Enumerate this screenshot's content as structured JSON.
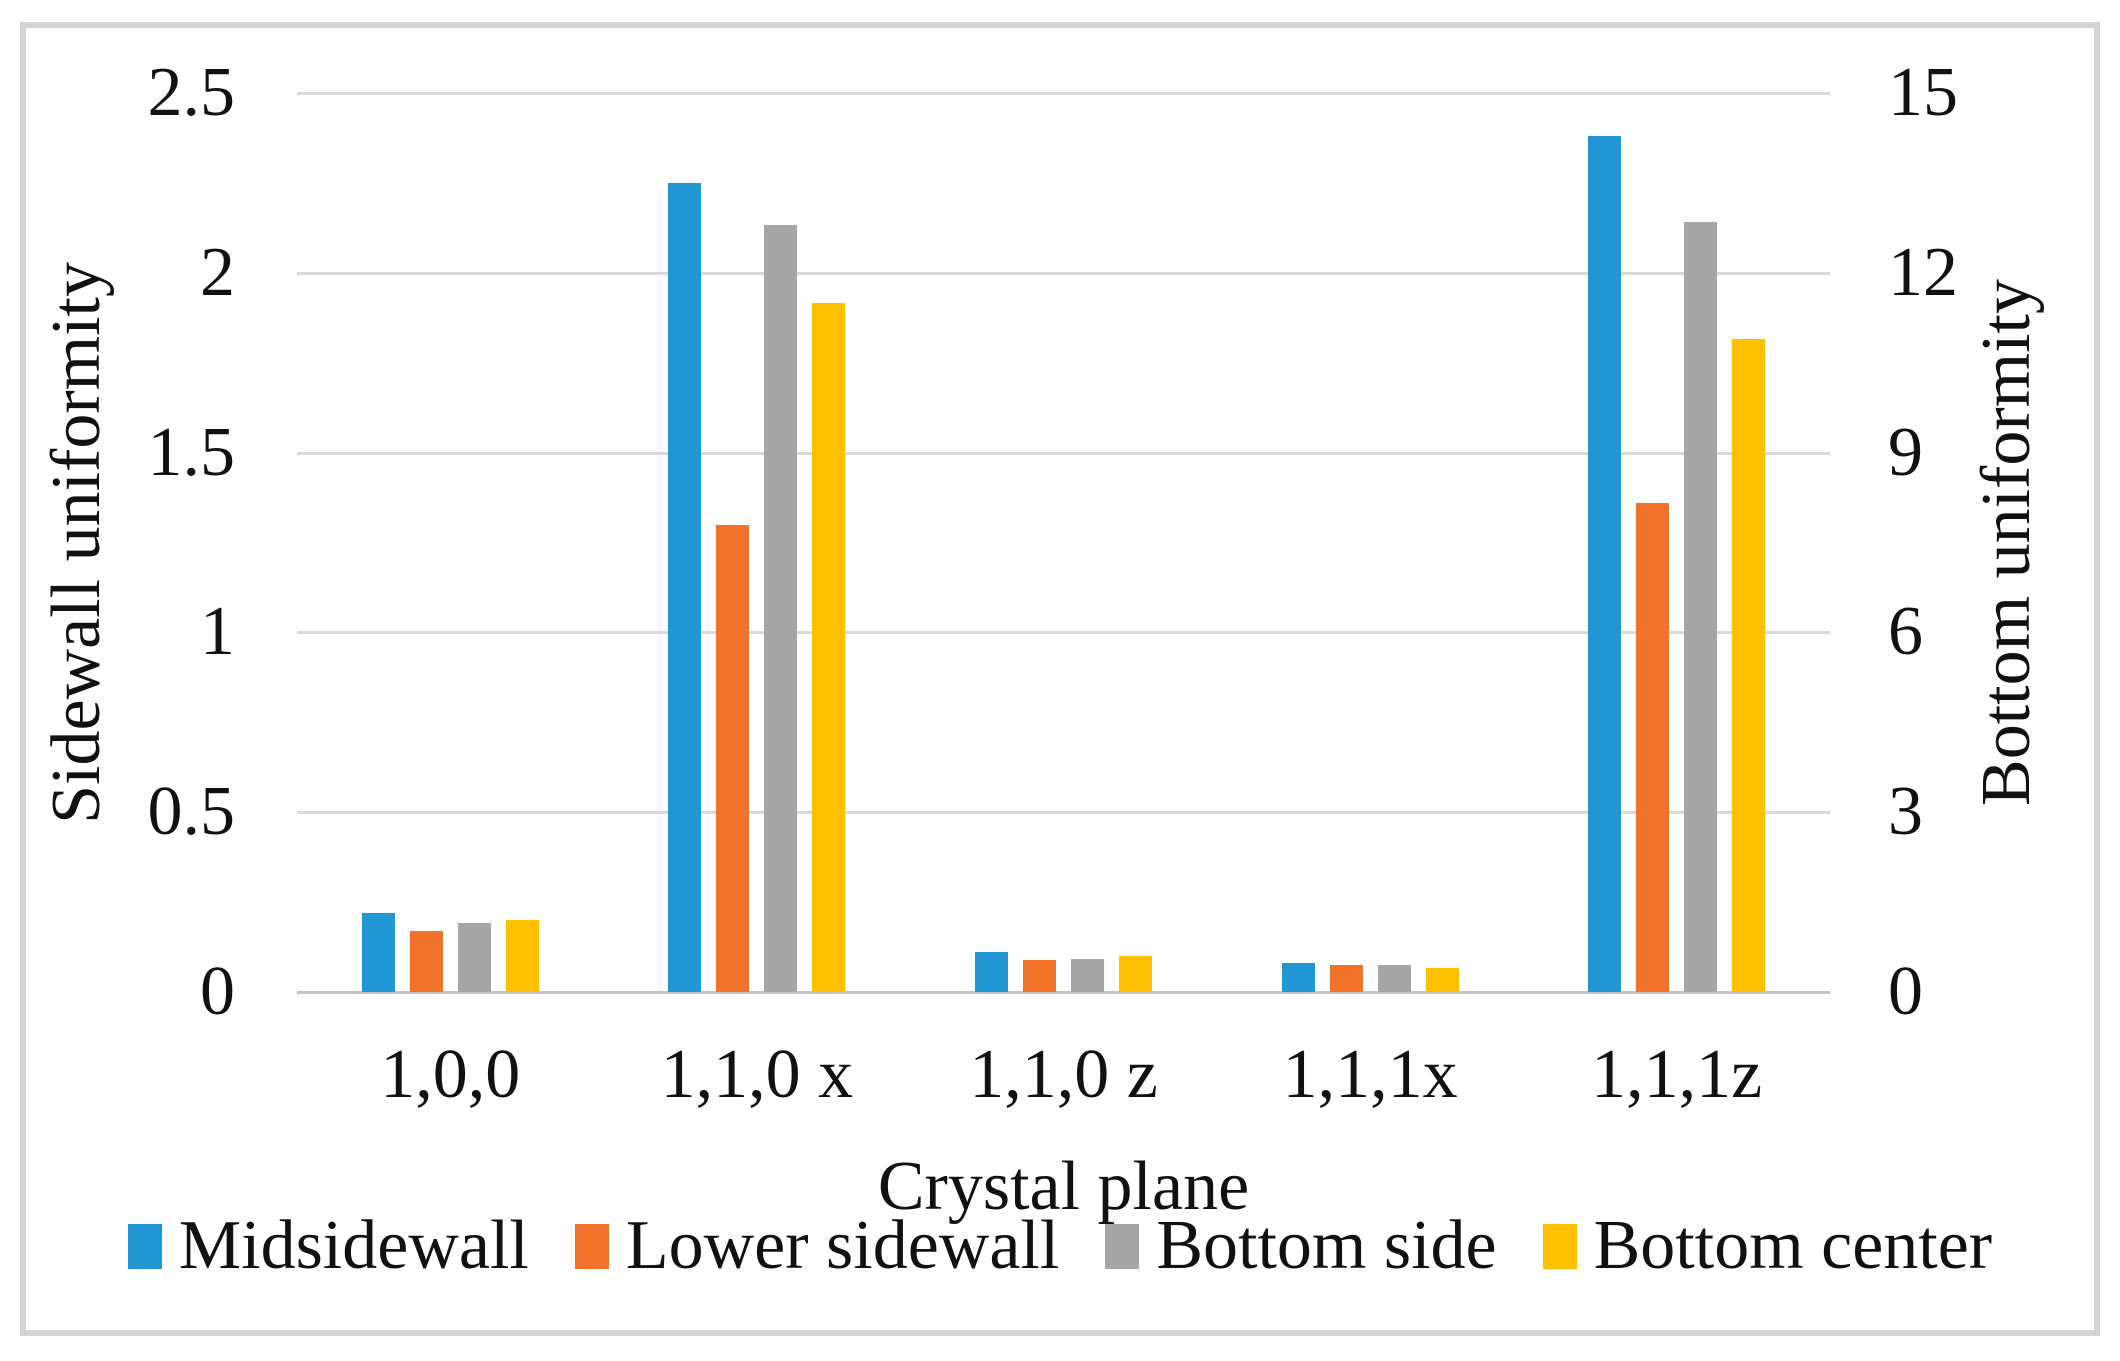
{
  "chart_data": {
    "type": "bar",
    "title": "",
    "xlabel": "Crystal plane",
    "categories": [
      "1,0,0",
      "1,1,0 x",
      "1,1,0 z",
      "1,1,1x",
      "1,1,1z"
    ],
    "left_axis": {
      "label": "Sidewall uniformity",
      "min": 0,
      "max": 2.5,
      "tick_step": 0.5,
      "tick_labels": [
        "0",
        "0.5",
        "1",
        "1.5",
        "2",
        "2.5"
      ]
    },
    "right_axis": {
      "label": "Bottom uniformity",
      "min": 0,
      "max": 15,
      "tick_step": 3,
      "tick_labels": [
        "0",
        "3",
        "6",
        "9",
        "12",
        "15"
      ]
    },
    "grid": true,
    "legend_position": "bottom",
    "series": [
      {
        "name": "Midsidewall",
        "axis": "left",
        "color": "#2196d3",
        "values": [
          0.22,
          2.25,
          0.11,
          0.08,
          2.38
        ]
      },
      {
        "name": "Lower sidewall",
        "axis": "left",
        "color": "#f0722b",
        "values": [
          0.17,
          1.3,
          0.09,
          0.075,
          1.36
        ]
      },
      {
        "name": "Bottom side",
        "axis": "right",
        "color": "#a6a6a6",
        "values": [
          1.15,
          12.8,
          0.55,
          0.45,
          12.85
        ]
      },
      {
        "name": "Bottom center",
        "axis": "right",
        "color": "#ffc000",
        "values": [
          1.2,
          11.5,
          0.6,
          0.4,
          10.9
        ]
      }
    ],
    "colors": {
      "gridline": "#d9d9d9",
      "baseline": "#c3c3c3",
      "frame": "#d4d4d4",
      "text": "#111111",
      "background": "#ffffff"
    }
  }
}
